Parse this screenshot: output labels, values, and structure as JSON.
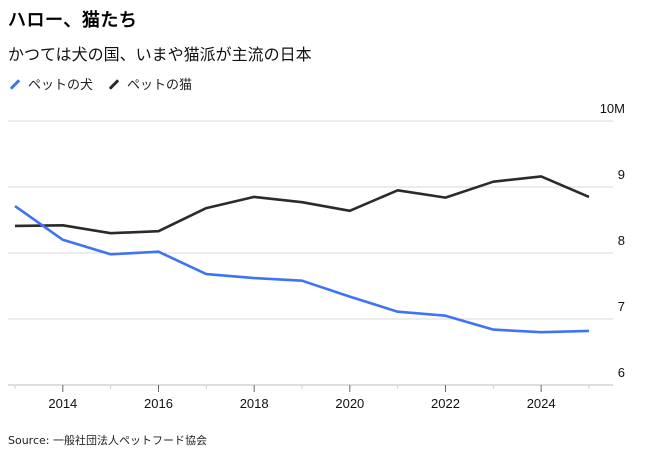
{
  "header": {
    "title": "ハロー、猫たち",
    "subtitle": "かつては犬の国、いまや猫派が主流の日本"
  },
  "legend": [
    {
      "label": "ペットの犬",
      "color": "#3f73f5"
    },
    {
      "label": "ペットの猫",
      "color": "#2b2b2b"
    }
  ],
  "source": "Source: 一般社団法人ペットフード協会",
  "chart_data": {
    "type": "line",
    "title": "ハロー、猫たち",
    "subtitle": "かつては犬の国、いまや猫派が主流の日本",
    "xlabel": "",
    "ylabel": "",
    "x": [
      2013,
      2014,
      2015,
      2016,
      2017,
      2018,
      2019,
      2020,
      2021,
      2022,
      2023,
      2024,
      2025
    ],
    "series": [
      {
        "name": "ペットの犬",
        "color": "#3f73f5",
        "values": [
          8.71,
          8.2,
          7.98,
          8.02,
          7.68,
          7.62,
          7.58,
          7.34,
          7.11,
          7.05,
          6.84,
          6.8,
          6.82
        ]
      },
      {
        "name": "ペットの猫",
        "color": "#2b2b2b",
        "values": [
          8.41,
          8.42,
          8.3,
          8.33,
          8.68,
          8.85,
          8.77,
          8.64,
          8.95,
          8.84,
          9.08,
          9.16,
          8.85
        ]
      }
    ],
    "ylim": [
      6,
      10
    ],
    "xlim": [
      2013,
      2025
    ],
    "yticks": [
      6,
      7,
      8,
      9,
      10
    ],
    "ytick_labels": [
      "6",
      "7",
      "8",
      "9",
      "10M"
    ],
    "xticks_major": [
      2014,
      2016,
      2018,
      2020,
      2022,
      2024
    ],
    "xtick_labels": [
      "2014",
      "2016",
      "2018",
      "2020",
      "2022",
      "2024"
    ],
    "xticks_minor": [
      2013,
      2015,
      2017,
      2019,
      2021,
      2023,
      2025
    ],
    "grid": true,
    "yaxis_position": "right",
    "legend_position": "top-left",
    "units": "millions"
  }
}
